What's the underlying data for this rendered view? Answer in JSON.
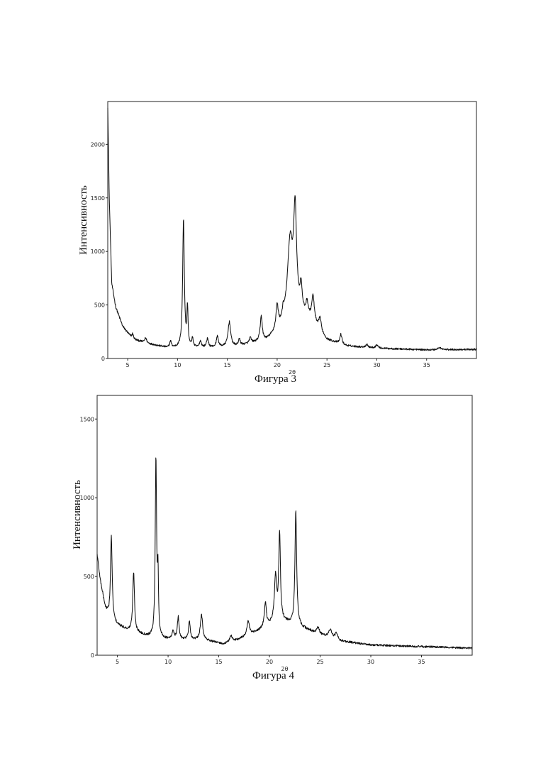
{
  "chart_data": [
    {
      "type": "line",
      "xlabel": "2θ",
      "ylabel": "Интенсивность",
      "caption": "Фигура 3",
      "xlim": [
        3,
        40
      ],
      "ylim": [
        0,
        2400
      ],
      "x_ticks": [
        5,
        10,
        15,
        20,
        25,
        30,
        35
      ],
      "y_ticks": [
        0,
        500,
        1000,
        1500,
        2000
      ],
      "grid": false,
      "baseline": [
        [
          3,
          2350
        ],
        [
          3.15,
          1500
        ],
        [
          3.4,
          700
        ],
        [
          3.8,
          480
        ],
        [
          4.5,
          300
        ],
        [
          5.5,
          180
        ],
        [
          7,
          140
        ],
        [
          9,
          100
        ],
        [
          12,
          95
        ],
        [
          16,
          110
        ],
        [
          19,
          170
        ],
        [
          20.5,
          280
        ],
        [
          22,
          420
        ],
        [
          23.5,
          330
        ],
        [
          25,
          170
        ],
        [
          27,
          115
        ],
        [
          30,
          95
        ],
        [
          35,
          80
        ],
        [
          40,
          85
        ]
      ],
      "peaks": [
        {
          "x": 5.5,
          "y": 50,
          "w": 0.1
        },
        {
          "x": 6.8,
          "y": 45,
          "w": 0.12
        },
        {
          "x": 9.3,
          "y": 60,
          "w": 0.1
        },
        {
          "x": 10.6,
          "y": 1200,
          "w": 0.1
        },
        {
          "x": 11.0,
          "y": 360,
          "w": 0.07
        },
        {
          "x": 11.5,
          "y": 80,
          "w": 0.1
        },
        {
          "x": 12.3,
          "y": 60,
          "w": 0.12
        },
        {
          "x": 13.0,
          "y": 80,
          "w": 0.12
        },
        {
          "x": 14.0,
          "y": 100,
          "w": 0.12
        },
        {
          "x": 15.2,
          "y": 230,
          "w": 0.16
        },
        {
          "x": 16.2,
          "y": 60,
          "w": 0.12
        },
        {
          "x": 17.3,
          "y": 50,
          "w": 0.12
        },
        {
          "x": 18.4,
          "y": 230,
          "w": 0.12
        },
        {
          "x": 20.0,
          "y": 220,
          "w": 0.14
        },
        {
          "x": 20.6,
          "y": 80,
          "w": 0.12
        },
        {
          "x": 21.3,
          "y": 720,
          "w": 0.32
        },
        {
          "x": 21.8,
          "y": 900,
          "w": 0.17
        },
        {
          "x": 22.4,
          "y": 230,
          "w": 0.12
        },
        {
          "x": 23.0,
          "y": 130,
          "w": 0.14
        },
        {
          "x": 23.6,
          "y": 240,
          "w": 0.16
        },
        {
          "x": 24.3,
          "y": 120,
          "w": 0.14
        },
        {
          "x": 26.4,
          "y": 90,
          "w": 0.12
        },
        {
          "x": 29.0,
          "y": 30,
          "w": 0.12
        },
        {
          "x": 30.0,
          "y": 30,
          "w": 0.15
        },
        {
          "x": 36.3,
          "y": 20,
          "w": 0.2
        }
      ],
      "noise": 11
    },
    {
      "type": "line",
      "xlabel": "2θ",
      "ylabel": "Интенсивность",
      "caption": "Фигура 4",
      "xlim": [
        3,
        40
      ],
      "ylim": [
        0,
        1650
      ],
      "x_ticks": [
        5,
        10,
        15,
        20,
        25,
        30,
        35
      ],
      "y_ticks": [
        0,
        500,
        1000,
        1500
      ],
      "grid": false,
      "baseline": [
        [
          3,
          640
        ],
        [
          3.3,
          480
        ],
        [
          3.8,
          300
        ],
        [
          4.3,
          220
        ],
        [
          5,
          190
        ],
        [
          6,
          160
        ],
        [
          7,
          140
        ],
        [
          8,
          120
        ],
        [
          10,
          100
        ],
        [
          12,
          100
        ],
        [
          14,
          90
        ],
        [
          15.5,
          70
        ],
        [
          17,
          100
        ],
        [
          18.5,
          140
        ],
        [
          20,
          190
        ],
        [
          21.5,
          210
        ],
        [
          23,
          180
        ],
        [
          25,
          130
        ],
        [
          27,
          90
        ],
        [
          30,
          65
        ],
        [
          35,
          55
        ],
        [
          40,
          45
        ]
      ],
      "peaks": [
        {
          "x": 4.4,
          "y": 540,
          "w": 0.1
        },
        {
          "x": 6.6,
          "y": 380,
          "w": 0.1
        },
        {
          "x": 8.8,
          "y": 1130,
          "w": 0.08
        },
        {
          "x": 9.0,
          "y": 380,
          "w": 0.06
        },
        {
          "x": 10.5,
          "y": 50,
          "w": 0.12
        },
        {
          "x": 11.0,
          "y": 140,
          "w": 0.1
        },
        {
          "x": 12.1,
          "y": 110,
          "w": 0.1
        },
        {
          "x": 13.3,
          "y": 160,
          "w": 0.14
        },
        {
          "x": 16.2,
          "y": 40,
          "w": 0.15
        },
        {
          "x": 17.9,
          "y": 90,
          "w": 0.15
        },
        {
          "x": 19.6,
          "y": 150,
          "w": 0.12
        },
        {
          "x": 20.6,
          "y": 290,
          "w": 0.14
        },
        {
          "x": 21.0,
          "y": 560,
          "w": 0.1
        },
        {
          "x": 22.6,
          "y": 730,
          "w": 0.1
        },
        {
          "x": 24.8,
          "y": 40,
          "w": 0.15
        },
        {
          "x": 26.0,
          "y": 50,
          "w": 0.2
        },
        {
          "x": 26.6,
          "y": 40,
          "w": 0.15
        }
      ],
      "noise": 9
    }
  ]
}
